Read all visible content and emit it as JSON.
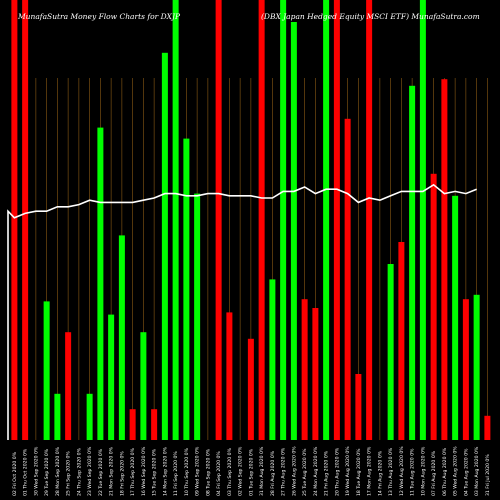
{
  "chart_data": {
    "type": "bar",
    "title_left": "MunafaSutra  Money Flow  Charts for DXJP",
    "title_right": "(DBX  Japan Hedged Equity MSCI ETF)  MunafaSutra.com",
    "colors": {
      "background": "#000000",
      "up": "#00ff00",
      "down": "#ff0000",
      "grid": "#8b5a14",
      "line": "#ffffff"
    },
    "grid": "vertical",
    "ylim": [
      0,
      100
    ],
    "categories": [
      "02 Fri Oct 2020 0% ",
      "01 Thu Oct 2020 0% ",
      "30 Wed Sep 2020 0% ",
      "29 Tue Sep 2020 0% ",
      "28 Mon Sep 2020 0% ",
      "25 Fri Sep 2020 0% ",
      "24 Thu Sep 2020 0% ",
      "23 Wed Sep 2020 0% ",
      "22 Tue Sep 2020 0% ",
      "21 Mon Sep 2020 0% ",
      "18 Fri Sep 2020 0% ",
      "17 Thu Sep 2020 0% ",
      "16 Wed Sep 2020 0% ",
      "15 Tue Sep 2020 0% ",
      "14 Mon Sep 2020 0% ",
      "11 Fri Sep 2020 0% ",
      "10 Thu Sep 2020 0% ",
      "09 Wed Sep 2020 0% ",
      "08 Tue Sep 2020 0% ",
      "04 Fri Sep 2020 0% ",
      "03 Thu Sep 2020 0% ",
      "02 Wed Sep 2020 0% ",
      "01 Tue Sep 2020 0% ",
      "31 Mon Aug 2020 0% ",
      "28 Fri Aug 2020 0% ",
      "27 Thu Aug 2020 0% ",
      "26 Wed Aug 2020 0% ",
      "25 Tue Aug 2020 0% ",
      "24 Mon Aug 2020 0% ",
      "21 Fri Aug 2020 0% ",
      "20 Thu Aug 2020 0% ",
      "19 Wed Aug 2020 0% ",
      "18 Tue Aug 2020 0% ",
      "17 Mon Aug 2020 0% ",
      "14 Fri Aug 2020 0% ",
      "13 Thu Aug 2020 0% ",
      "12 Wed Aug 2020 0% ",
      "11 Tue Aug 2020 0% ",
      "10 Mon Aug 2020 0% ",
      "07 Fri Aug 2020 0% ",
      "06 Thu Aug 2020 0% ",
      "05 Wed Aug 2020 0% ",
      "04 Tue Aug 2020 0% ",
      "03 Mon Aug 2020 0% ",
      "31 Fri Jul 2020 0% "
    ],
    "bars": [
      {
        "v": 100,
        "dir": "down"
      },
      {
        "v": 100,
        "dir": "down"
      },
      {
        "v": 0,
        "dir": "down"
      },
      {
        "v": 31.5,
        "dir": "up"
      },
      {
        "v": 10.5,
        "dir": "up"
      },
      {
        "v": 24.5,
        "dir": "down"
      },
      {
        "v": 0,
        "dir": "up"
      },
      {
        "v": 10.5,
        "dir": "up"
      },
      {
        "v": 71,
        "dir": "up"
      },
      {
        "v": 28.5,
        "dir": "up"
      },
      {
        "v": 46.5,
        "dir": "up"
      },
      {
        "v": 7,
        "dir": "down"
      },
      {
        "v": 24.5,
        "dir": "up"
      },
      {
        "v": 7,
        "dir": "down"
      },
      {
        "v": 88,
        "dir": "up"
      },
      {
        "v": 100,
        "dir": "up"
      },
      {
        "v": 68.5,
        "dir": "up"
      },
      {
        "v": 56,
        "dir": "up"
      },
      {
        "v": 0,
        "dir": "up"
      },
      {
        "v": 100,
        "dir": "down"
      },
      {
        "v": 29,
        "dir": "down"
      },
      {
        "v": 0,
        "dir": "up"
      },
      {
        "v": 23,
        "dir": "down"
      },
      {
        "v": 100,
        "dir": "down"
      },
      {
        "v": 36.5,
        "dir": "up"
      },
      {
        "v": 100,
        "dir": "up"
      },
      {
        "v": 95,
        "dir": "up"
      },
      {
        "v": 32,
        "dir": "down"
      },
      {
        "v": 30,
        "dir": "down"
      },
      {
        "v": 100,
        "dir": "up"
      },
      {
        "v": 100,
        "dir": "down"
      },
      {
        "v": 73,
        "dir": "down"
      },
      {
        "v": 15,
        "dir": "down"
      },
      {
        "v": 100,
        "dir": "down"
      },
      {
        "v": 0,
        "dir": "up"
      },
      {
        "v": 40,
        "dir": "up"
      },
      {
        "v": 45,
        "dir": "down"
      },
      {
        "v": 80.5,
        "dir": "up"
      },
      {
        "v": 100,
        "dir": "up"
      },
      {
        "v": 60.5,
        "dir": "down"
      },
      {
        "v": 82,
        "dir": "down"
      },
      {
        "v": 55.5,
        "dir": "up"
      },
      {
        "v": 32,
        "dir": "down"
      },
      {
        "v": 33,
        "dir": "up"
      },
      {
        "v": 5.5,
        "dir": "down"
      }
    ],
    "line": [
      52,
      50.5,
      51.5,
      52,
      52,
      53,
      53,
      53.5,
      54.5,
      54,
      54,
      54,
      54,
      54.5,
      55,
      56,
      56,
      55.5,
      55.5,
      56,
      56,
      55.5,
      55.5,
      55.5,
      55,
      55,
      56.5,
      56.5,
      57.5,
      56,
      57,
      57,
      56,
      54,
      55,
      54.5,
      55.5,
      56.5,
      56.5,
      56.5,
      58,
      56,
      56.5,
      56,
      57
    ]
  }
}
